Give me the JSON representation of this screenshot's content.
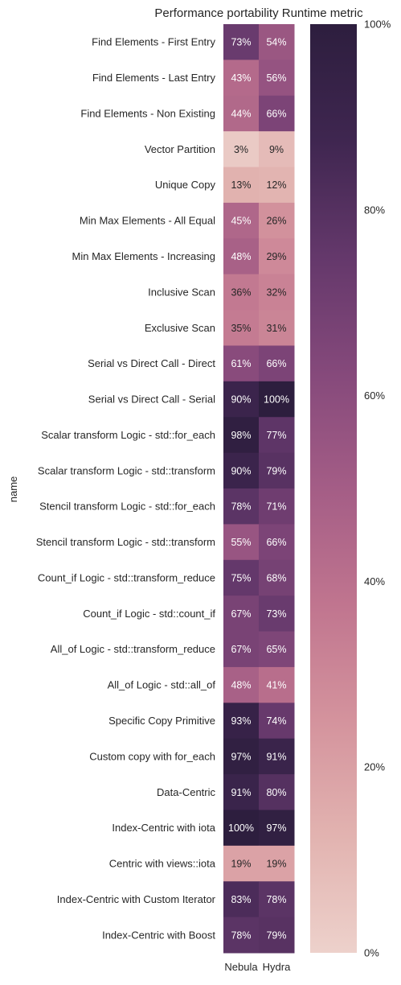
{
  "chart_data": {
    "type": "heatmap",
    "title": "Performance portability Runtime metric",
    "ylabel": "name",
    "xlabel": "",
    "columns": [
      "Nebula",
      "Hydra"
    ],
    "rows": [
      {
        "name": "Find Elements - First Entry",
        "values": [
          73,
          54
        ],
        "labels": [
          "73%",
          "54%"
        ]
      },
      {
        "name": "Find Elements - Last Entry",
        "values": [
          43,
          56
        ],
        "labels": [
          "43%",
          "56%"
        ]
      },
      {
        "name": "Find Elements - Non Existing",
        "values": [
          44,
          66
        ],
        "labels": [
          "44%",
          "66%"
        ]
      },
      {
        "name": "Vector Partition",
        "values": [
          3,
          9
        ],
        "labels": [
          "3%",
          "9%"
        ]
      },
      {
        "name": "Unique Copy",
        "values": [
          13,
          12
        ],
        "labels": [
          "13%",
          "12%"
        ]
      },
      {
        "name": "Min Max Elements - All Equal",
        "values": [
          45,
          26
        ],
        "labels": [
          "45%",
          "26%"
        ]
      },
      {
        "name": "Min Max Elements - Increasing",
        "values": [
          48,
          29
        ],
        "labels": [
          "48%",
          "29%"
        ]
      },
      {
        "name": "Inclusive Scan",
        "values": [
          36,
          32
        ],
        "labels": [
          "36%",
          "32%"
        ]
      },
      {
        "name": "Exclusive Scan",
        "values": [
          35,
          31
        ],
        "labels": [
          "35%",
          "31%"
        ]
      },
      {
        "name": "Serial vs Direct Call - Direct",
        "values": [
          61,
          66
        ],
        "labels": [
          "61%",
          "66%"
        ]
      },
      {
        "name": "Serial vs Direct Call - Serial",
        "values": [
          90,
          100
        ],
        "labels": [
          "90%",
          "100%"
        ]
      },
      {
        "name": "Scalar transform Logic - std::for_each",
        "values": [
          98,
          77
        ],
        "labels": [
          "98%",
          "77%"
        ]
      },
      {
        "name": "Scalar transform Logic - std::transform",
        "values": [
          90,
          79
        ],
        "labels": [
          "90%",
          "79%"
        ]
      },
      {
        "name": "Stencil transform Logic - std::for_each",
        "values": [
          78,
          71
        ],
        "labels": [
          "78%",
          "71%"
        ]
      },
      {
        "name": "Stencil transform Logic - std::transform",
        "values": [
          55,
          66
        ],
        "labels": [
          "55%",
          "66%"
        ]
      },
      {
        "name": "Count_if Logic - std::transform_reduce",
        "values": [
          75,
          68
        ],
        "labels": [
          "75%",
          "68%"
        ]
      },
      {
        "name": "Count_if Logic - std::count_if",
        "values": [
          67,
          73
        ],
        "labels": [
          "67%",
          "73%"
        ]
      },
      {
        "name": "All_of Logic - std::transform_reduce",
        "values": [
          67,
          65
        ],
        "labels": [
          "67%",
          "65%"
        ]
      },
      {
        "name": "All_of Logic - std::all_of",
        "values": [
          48,
          41
        ],
        "labels": [
          "48%",
          "41%"
        ]
      },
      {
        "name": "Specific Copy Primitive",
        "values": [
          93,
          74
        ],
        "labels": [
          "93%",
          "74%"
        ]
      },
      {
        "name": "Custom copy with for_each",
        "values": [
          97,
          91
        ],
        "labels": [
          "97%",
          "91%"
        ]
      },
      {
        "name": "Data-Centric",
        "values": [
          91,
          80
        ],
        "labels": [
          "91%",
          "80%"
        ]
      },
      {
        "name": "Index-Centric with iota",
        "values": [
          100,
          97
        ],
        "labels": [
          "100%",
          "97%"
        ]
      },
      {
        "name": "Centric with views::iota",
        "values": [
          19,
          19
        ],
        "labels": [
          "19%",
          "19%"
        ]
      },
      {
        "name": "Index-Centric with Custom Iterator",
        "values": [
          83,
          78
        ],
        "labels": [
          "83%",
          "78%"
        ]
      },
      {
        "name": "Index-Centric with Boost",
        "values": [
          78,
          79
        ],
        "labels": [
          "78%",
          "79%"
        ]
      }
    ],
    "colorbar": {
      "range": [
        0,
        100
      ],
      "ticks": [
        0,
        20,
        40,
        60,
        80,
        100
      ],
      "tick_labels": [
        "0%",
        "20%",
        "40%",
        "60%",
        "80%",
        "100%"
      ],
      "colormap": "cubehelix-light",
      "color_stops": [
        "#edd1cb",
        "#e2b3b0",
        "#d4939d",
        "#c0758f",
        "#a45d86",
        "#85497b",
        "#64386b",
        "#3f2650",
        "#2d1e3e"
      ]
    },
    "grid": false,
    "legend": "none"
  }
}
